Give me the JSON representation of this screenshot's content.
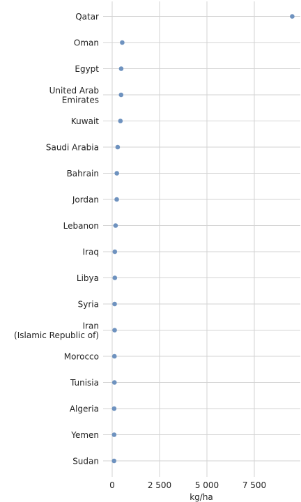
{
  "chart_data": {
    "type": "scatter",
    "title": "",
    "xlabel": "kg/ha",
    "ylabel": "",
    "xlim": [
      0,
      10000
    ],
    "xticks": [
      0,
      2500,
      5000,
      7500
    ],
    "xtick_labels": [
      "0",
      "2 500",
      "5 000",
      "7 500"
    ],
    "grid": true,
    "marker_color": "#6e92bf",
    "categories": [
      [
        "Qatar"
      ],
      [
        "Oman"
      ],
      [
        "Egypt"
      ],
      [
        "United Arab",
        "Emirates"
      ],
      [
        "Kuwait"
      ],
      [
        "Saudi Arabia"
      ],
      [
        "Bahrain"
      ],
      [
        "Jordan"
      ],
      [
        "Lebanon"
      ],
      [
        "Iraq"
      ],
      [
        "Libya"
      ],
      [
        "Syria"
      ],
      [
        "Iran",
        "(Islamic Republic of)"
      ],
      [
        "Morocco"
      ],
      [
        "Tunisia"
      ],
      [
        "Algeria"
      ],
      [
        "Yemen"
      ],
      [
        "Sudan"
      ]
    ],
    "values": [
      9500,
      530,
      475,
      470,
      435,
      290,
      245,
      240,
      180,
      140,
      140,
      130,
      130,
      120,
      120,
      105,
      105,
      100
    ]
  }
}
